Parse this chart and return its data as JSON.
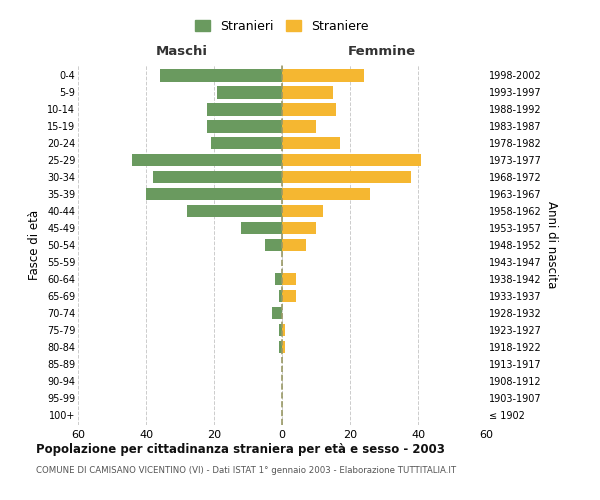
{
  "age_groups": [
    "100+",
    "95-99",
    "90-94",
    "85-89",
    "80-84",
    "75-79",
    "70-74",
    "65-69",
    "60-64",
    "55-59",
    "50-54",
    "45-49",
    "40-44",
    "35-39",
    "30-34",
    "25-29",
    "20-24",
    "15-19",
    "10-14",
    "5-9",
    "0-4"
  ],
  "birth_years": [
    "≤ 1902",
    "1903-1907",
    "1908-1912",
    "1913-1917",
    "1918-1922",
    "1923-1927",
    "1928-1932",
    "1933-1937",
    "1938-1942",
    "1943-1947",
    "1948-1952",
    "1953-1957",
    "1958-1962",
    "1963-1967",
    "1968-1972",
    "1973-1977",
    "1978-1982",
    "1983-1987",
    "1988-1992",
    "1993-1997",
    "1998-2002"
  ],
  "males": [
    0,
    0,
    0,
    0,
    -1,
    -1,
    -3,
    -1,
    -2,
    0,
    -5,
    -12,
    -28,
    -40,
    -38,
    -44,
    -21,
    -22,
    -22,
    -19,
    -36
  ],
  "females": [
    0,
    0,
    0,
    0,
    1,
    1,
    0,
    4,
    4,
    0,
    7,
    10,
    12,
    26,
    38,
    41,
    17,
    10,
    16,
    15,
    24
  ],
  "male_color": "#6a9a5f",
  "female_color": "#f5b731",
  "center_line_color": "#999966",
  "title": "Popolazione per cittadinanza straniera per età e sesso - 2003",
  "subtitle": "COMUNE DI CAMISANO VICENTINO (VI) - Dati ISTAT 1° gennaio 2003 - Elaborazione TUTTITALIA.IT",
  "ylabel_left": "Fasce di età",
  "ylabel_right": "Anni di nascita",
  "xlabel_maschi": "Maschi",
  "xlabel_femmine": "Femmine",
  "legend_stranieri": "Stranieri",
  "legend_straniere": "Straniere",
  "xlim": [
    -60,
    60
  ],
  "background_color": "#ffffff",
  "grid_color": "#cccccc",
  "bar_height": 0.75
}
